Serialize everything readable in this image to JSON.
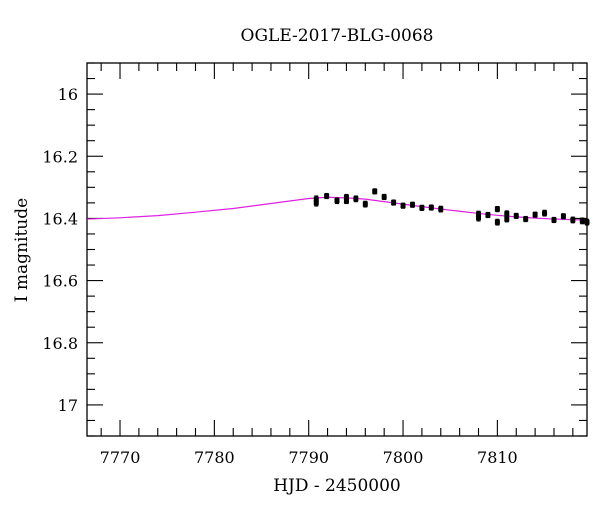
{
  "chart_data": {
    "type": "scatter",
    "title": "OGLE-2017-BLG-0068",
    "xlabel": "HJD - 2450000",
    "ylabel": "I magnitude",
    "xlim": [
      7766.5,
      7819.5
    ],
    "ylim": [
      17.1,
      15.9
    ],
    "y_inverted": true,
    "grid": false,
    "x_ticks": {
      "major": [
        7770,
        7780,
        7790,
        7800,
        7810
      ],
      "labels": [
        "7770",
        "7780",
        "7790",
        "7800",
        "7810"
      ],
      "minor_step": 2
    },
    "y_ticks": {
      "major": [
        16,
        16.2,
        16.4,
        16.6,
        16.8,
        17
      ],
      "labels": [
        "16",
        "16.2",
        "16.4",
        "16.6",
        "16.8",
        "17"
      ],
      "minor_step": 0.05
    },
    "series": [
      {
        "kind": "points",
        "color": "#000000",
        "points": [
          {
            "x": 7790.8,
            "y": 16.338,
            "err": 0.01
          },
          {
            "x": 7790.8,
            "y": 16.35,
            "err": 0.01
          },
          {
            "x": 7791.9,
            "y": 16.328,
            "err": 0.008
          },
          {
            "x": 7793.0,
            "y": 16.343,
            "err": 0.009
          },
          {
            "x": 7794.0,
            "y": 16.332,
            "err": 0.009
          },
          {
            "x": 7794.0,
            "y": 16.344,
            "err": 0.008
          },
          {
            "x": 7795.0,
            "y": 16.337,
            "err": 0.009
          },
          {
            "x": 7796.0,
            "y": 16.354,
            "err": 0.009
          },
          {
            "x": 7797.0,
            "y": 16.313,
            "err": 0.008
          },
          {
            "x": 7798.0,
            "y": 16.331,
            "err": 0.008
          },
          {
            "x": 7799.0,
            "y": 16.349,
            "err": 0.008
          },
          {
            "x": 7800.0,
            "y": 16.359,
            "err": 0.008
          },
          {
            "x": 7801.0,
            "y": 16.356,
            "err": 0.008
          },
          {
            "x": 7802.0,
            "y": 16.366,
            "err": 0.008
          },
          {
            "x": 7803.0,
            "y": 16.365,
            "err": 0.008
          },
          {
            "x": 7804.0,
            "y": 16.37,
            "err": 0.009
          },
          {
            "x": 7808.0,
            "y": 16.386,
            "err": 0.009
          },
          {
            "x": 7808.0,
            "y": 16.398,
            "err": 0.01
          },
          {
            "x": 7809.0,
            "y": 16.389,
            "err": 0.008
          },
          {
            "x": 7810.0,
            "y": 16.37,
            "err": 0.008
          },
          {
            "x": 7810.0,
            "y": 16.412,
            "err": 0.009
          },
          {
            "x": 7811.0,
            "y": 16.385,
            "err": 0.009
          },
          {
            "x": 7811.0,
            "y": 16.402,
            "err": 0.009
          },
          {
            "x": 7812.0,
            "y": 16.392,
            "err": 0.008
          },
          {
            "x": 7813.0,
            "y": 16.402,
            "err": 0.008
          },
          {
            "x": 7814.0,
            "y": 16.388,
            "err": 0.008
          },
          {
            "x": 7815.0,
            "y": 16.383,
            "err": 0.009
          },
          {
            "x": 7816.0,
            "y": 16.405,
            "err": 0.008
          },
          {
            "x": 7817.0,
            "y": 16.393,
            "err": 0.008
          },
          {
            "x": 7818.0,
            "y": 16.405,
            "err": 0.009
          },
          {
            "x": 7819.0,
            "y": 16.408,
            "err": 0.009
          },
          {
            "x": 7819.5,
            "y": 16.412,
            "err": 0.009
          }
        ]
      },
      {
        "kind": "model-curve",
        "color": "#e020e0",
        "points": [
          {
            "x": 7766.5,
            "y": 16.402
          },
          {
            "x": 7770,
            "y": 16.398
          },
          {
            "x": 7774,
            "y": 16.391
          },
          {
            "x": 7778,
            "y": 16.38
          },
          {
            "x": 7782,
            "y": 16.368
          },
          {
            "x": 7785,
            "y": 16.356
          },
          {
            "x": 7788,
            "y": 16.344
          },
          {
            "x": 7790,
            "y": 16.336
          },
          {
            "x": 7792,
            "y": 16.332
          },
          {
            "x": 7794,
            "y": 16.334
          },
          {
            "x": 7796,
            "y": 16.338
          },
          {
            "x": 7798,
            "y": 16.346
          },
          {
            "x": 7800,
            "y": 16.354
          },
          {
            "x": 7802,
            "y": 16.362
          },
          {
            "x": 7804,
            "y": 16.37
          },
          {
            "x": 7806,
            "y": 16.377
          },
          {
            "x": 7808,
            "y": 16.384
          },
          {
            "x": 7810,
            "y": 16.39
          },
          {
            "x": 7812,
            "y": 16.395
          },
          {
            "x": 7814,
            "y": 16.399
          },
          {
            "x": 7816,
            "y": 16.402
          },
          {
            "x": 7818,
            "y": 16.404
          },
          {
            "x": 7819.5,
            "y": 16.405
          }
        ]
      }
    ]
  }
}
